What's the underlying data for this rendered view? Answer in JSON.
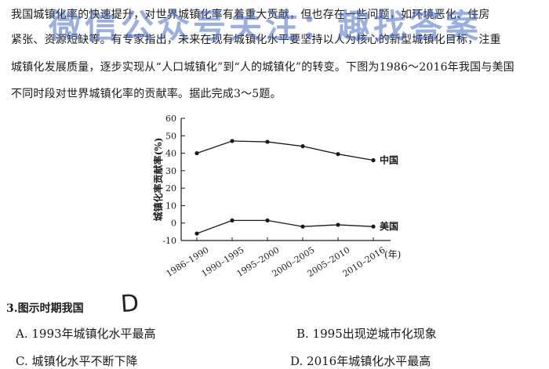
{
  "passage": {
    "line1": "我国城镇化率的快速提升，对世界城镇化率有着重大贡献，但也存在一些问题，如环境恶化、住房",
    "line2": "紧张、资源短缺等。有专家指出，未来在现有城镇化水平要坚持以人为核心的新型城镇化目标，注重",
    "line3": "城镇化发展质量，逐步实现从“人口城镇化”到“人的城镇化”的转变。下图为1986～2016年我国与美国",
    "line4": "不同时段对世界城镇化率的贡献率。据此完成3～5题。"
  },
  "watermark": "微信公众号关注：趣找答案",
  "chart_data": {
    "type": "line",
    "categories": [
      "1986–1990",
      "1990–1995",
      "1995–2000",
      "2000–2005",
      "2005–2010",
      "2010–2016"
    ],
    "x_unit": "(年)",
    "ylabel": "城镇化率贡献率(%)",
    "ylim": [
      -10,
      60
    ],
    "yticks": [
      -10,
      0,
      10,
      20,
      30,
      40,
      50,
      60
    ],
    "series": [
      {
        "name": "中国",
        "values": [
          40,
          47,
          46.5,
          44,
          39.5,
          36
        ]
      },
      {
        "name": "美国",
        "values": [
          -6,
          1.5,
          1.5,
          -2,
          -1,
          -2
        ]
      }
    ]
  },
  "question": {
    "number": "3.",
    "stem": "图示时期我国",
    "handwritten_answer": "D"
  },
  "options": {
    "A": "A. 1993年城镇化水平最高",
    "B": "B. 1995出现逆城市化现象",
    "C": "C. 城镇化水平不断下降",
    "D": "D. 2016年城镇化水平最高"
  },
  "colors": {
    "ink": "#1a1a1a",
    "watermark": "#466ec8"
  }
}
